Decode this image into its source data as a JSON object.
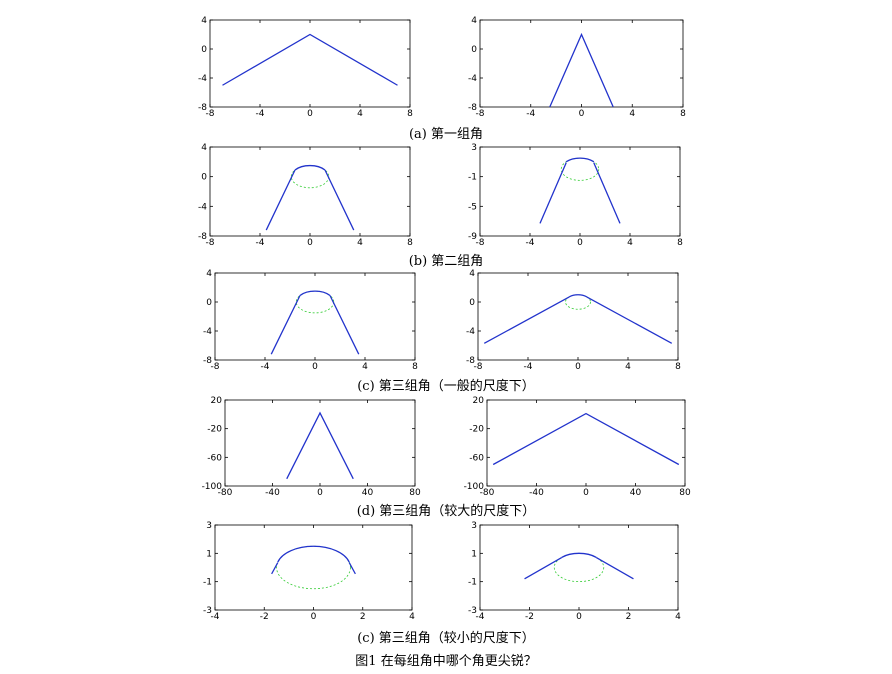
{
  "figure_caption": "图1  在每组角中哪个角更尖锐？",
  "colors": {
    "curve": "#2233cc",
    "circle": "#33cc33",
    "axis": "#000000"
  },
  "rows": [
    {
      "caption": "(a) 第一组角"
    },
    {
      "caption": "(b) 第二组角"
    },
    {
      "caption": "(c) 第三组角（一般的尺度下）"
    },
    {
      "caption": "(d) 第三组角（较大的尺度下）"
    },
    {
      "caption": "(c) 第三组角（较小的尺度下）"
    }
  ],
  "chart_data": [
    {
      "type": "line",
      "panel": "a-left",
      "xlim": [
        -8,
        8
      ],
      "ylim": [
        -8,
        4
      ],
      "xticks": [
        "-8",
        "-4",
        "0",
        "4",
        "8"
      ],
      "yticks": [
        "4",
        "0",
        "-4",
        "-8"
      ],
      "ytick_values": [
        4,
        0,
        -4,
        -8
      ],
      "series": [
        {
          "x": [
            -7,
            0,
            7
          ],
          "y": [
            -5,
            2,
            -5
          ]
        }
      ]
    },
    {
      "type": "line",
      "panel": "a-right",
      "xlim": [
        -8,
        8
      ],
      "ylim": [
        -8,
        4
      ],
      "xticks": [
        "-8",
        "-4",
        "0",
        "4",
        "8"
      ],
      "yticks": [
        "4",
        "0",
        "-4",
        "-8"
      ],
      "ytick_values": [
        4,
        0,
        -4,
        -8
      ],
      "series": [
        {
          "x": [
            -2.5,
            0,
            2.5
          ],
          "y": [
            -8,
            2,
            -8
          ]
        }
      ]
    },
    {
      "type": "line",
      "panel": "b-left",
      "xlim": [
        -8,
        8
      ],
      "ylim": [
        -8,
        4
      ],
      "xticks": [
        "-8",
        "-4",
        "0",
        "4",
        "8"
      ],
      "yticks": [
        "4",
        "0",
        "-4",
        "-8"
      ],
      "ytick_values": [
        4,
        0,
        -4,
        -8
      ],
      "arc": {
        "cx": 0,
        "cy": 0,
        "r": 1.5,
        "join": 1.2
      },
      "series": [
        {
          "x": [
            -3.5,
            -1.2,
            1.2,
            3.5
          ],
          "y": [
            -7.2,
            0.9,
            0.9,
            -7.2
          ]
        }
      ]
    },
    {
      "type": "line",
      "panel": "b-right",
      "xlim": [
        -8,
        8
      ],
      "ylim": [
        -9,
        3
      ],
      "xticks": [
        "-8",
        "-4",
        "0",
        "4",
        "8"
      ],
      "yticks": [
        "3",
        "-1",
        "-5",
        "-9"
      ],
      "ytick_values": [
        3,
        -1,
        -5,
        -9
      ],
      "arc": {
        "cx": 0,
        "cy": 0,
        "r": 1.5,
        "join": 1.1
      },
      "series": [
        {
          "x": [
            -3.2,
            -1.1,
            1.1,
            3.2
          ],
          "y": [
            -7.3,
            0.9,
            0.9,
            -7.3
          ]
        }
      ]
    },
    {
      "type": "line",
      "panel": "c-left",
      "xlim": [
        -8,
        8
      ],
      "ylim": [
        -8,
        4
      ],
      "xticks": [
        "-8",
        "-4",
        "0",
        "4",
        "8"
      ],
      "yticks": [
        "4",
        "0",
        "-4",
        "-8"
      ],
      "ytick_values": [
        4,
        0,
        -4,
        -8
      ],
      "arc": {
        "cx": 0,
        "cy": 0,
        "r": 1.5,
        "join": 1.2
      },
      "series": [
        {
          "x": [
            -3.5,
            -1.2,
            1.2,
            3.5
          ],
          "y": [
            -7.2,
            0.9,
            0.9,
            -7.2
          ]
        }
      ]
    },
    {
      "type": "line",
      "panel": "c-right",
      "xlim": [
        -8,
        8
      ],
      "ylim": [
        -8,
        4
      ],
      "xticks": [
        "-8",
        "-4",
        "0",
        "4",
        "8"
      ],
      "yticks": [
        "4",
        "0",
        "-4",
        "-8"
      ],
      "ytick_values": [
        4,
        0,
        -4,
        -8
      ],
      "arc": {
        "cx": 0,
        "cy": 0,
        "r": 1,
        "join": 0.7
      },
      "series": [
        {
          "x": [
            -7.5,
            -0.7,
            0.7,
            7.5
          ],
          "y": [
            -5.7,
            0.7,
            0.7,
            -5.7
          ]
        }
      ]
    },
    {
      "type": "line",
      "panel": "d-left",
      "xlim": [
        -80,
        80
      ],
      "ylim": [
        -100,
        20
      ],
      "xticks": [
        "-80",
        "-40",
        "0",
        "40",
        "80"
      ],
      "yticks": [
        "20",
        "-20",
        "-60",
        "-100"
      ],
      "ytick_values": [
        20,
        -20,
        -60,
        -100
      ],
      "series": [
        {
          "x": [
            -28,
            0,
            28
          ],
          "y": [
            -90,
            2,
            -90
          ]
        }
      ]
    },
    {
      "type": "line",
      "panel": "d-right",
      "xlim": [
        -80,
        80
      ],
      "ylim": [
        -100,
        20
      ],
      "xticks": [
        "-80",
        "-40",
        "0",
        "40",
        "80"
      ],
      "yticks": [
        "20",
        "-20",
        "-60",
        "-100"
      ],
      "ytick_values": [
        20,
        -20,
        -60,
        -100
      ],
      "series": [
        {
          "x": [
            -75,
            0,
            75
          ],
          "y": [
            -70,
            1,
            -70
          ]
        }
      ]
    },
    {
      "type": "line",
      "panel": "e-left",
      "xlim": [
        -4,
        4
      ],
      "ylim": [
        -3,
        3
      ],
      "xticks": [
        "-4",
        "-2",
        "0",
        "2",
        "4"
      ],
      "yticks": [
        "3",
        "1",
        "-1",
        "-3"
      ],
      "ytick_values": [
        3,
        1,
        -1,
        -3
      ],
      "arc": {
        "cx": 0,
        "cy": 0,
        "r": 1.5,
        "join": 1.45
      },
      "series": [
        {
          "x": [
            -1.7,
            -1.45,
            1.45,
            1.7
          ],
          "y": [
            -0.45,
            0.35,
            0.35,
            -0.45
          ]
        }
      ]
    },
    {
      "type": "line",
      "panel": "e-right",
      "xlim": [
        -4,
        4
      ],
      "ylim": [
        -3,
        3
      ],
      "xticks": [
        "-4",
        "-2",
        "0",
        "2",
        "4"
      ],
      "yticks": [
        "3",
        "1",
        "-1",
        "-3"
      ],
      "ytick_values": [
        3,
        1,
        -1,
        -3
      ],
      "arc": {
        "cx": 0,
        "cy": 0,
        "r": 1,
        "join": 0.7
      },
      "series": [
        {
          "x": [
            -2.2,
            -0.7,
            0.7,
            2.2
          ],
          "y": [
            -0.8,
            0.7,
            0.7,
            -0.8
          ]
        }
      ]
    }
  ]
}
